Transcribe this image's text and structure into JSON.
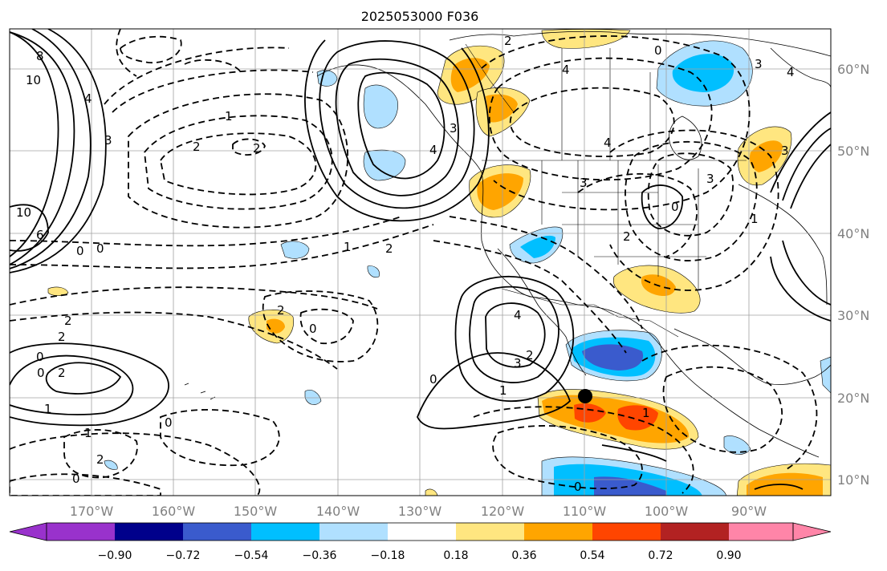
{
  "title": "2025053000 F036",
  "longitude_ticks": [
    "170°W",
    "160°W",
    "150°W",
    "140°W",
    "130°W",
    "120°W",
    "110°W",
    "100°W",
    "90°W"
  ],
  "latitude_ticks": [
    "60°N",
    "50°N",
    "40°N",
    "30°N",
    "20°N",
    "10°N"
  ],
  "colorbar": {
    "levels": [
      "−0.90",
      "−0.72",
      "−0.54",
      "−0.36",
      "−0.18",
      "0.18",
      "0.36",
      "0.54",
      "0.72",
      "0.90"
    ],
    "colors": [
      "#9932cc",
      "#00008b",
      "#3a5bcd",
      "#00bfff",
      "#b0e0ff",
      "#ffffff",
      "#ffe680",
      "#ffa500",
      "#ff4500",
      "#b22222",
      "#ff85a8"
    ]
  },
  "contour_labels": [
    "8",
    "10",
    "10",
    "6",
    "0",
    "0",
    "2",
    "2",
    "2",
    "2",
    "0",
    "1",
    "3",
    "4",
    "2",
    "4",
    "3",
    "2",
    "4",
    "3",
    "2",
    "3",
    "1",
    "1",
    "0",
    "0",
    "0",
    "4",
    "3",
    "2",
    "1",
    "0",
    "1",
    "2",
    "0",
    "0",
    "2",
    "0",
    "1",
    "1",
    "2",
    "3",
    "4",
    "0",
    "3",
    "4"
  ],
  "marker": {
    "label": "center-point",
    "lon": "110°W",
    "lat": "20°N"
  }
}
